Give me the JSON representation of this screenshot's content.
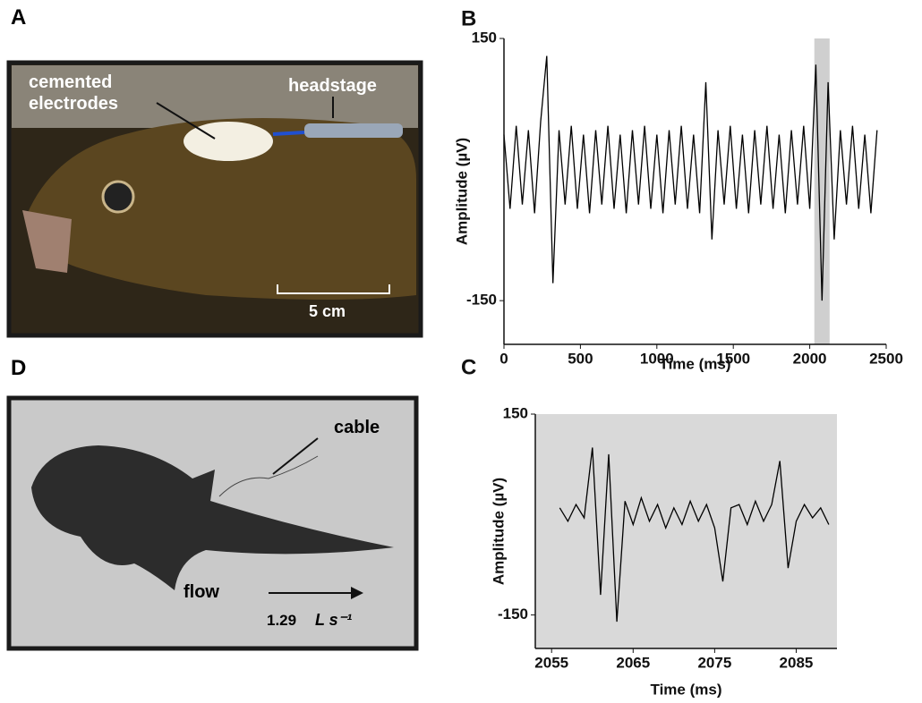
{
  "panels": {
    "A": {
      "label": "A",
      "electrodes": "cemented electrodes",
      "headstage": "headstage",
      "scale": "5 cm"
    },
    "D": {
      "label": "D",
      "cable": "cable",
      "flow": "flow",
      "speed": "1.29",
      "speed_unit": "L s⁻¹"
    }
  },
  "chart_data": [
    {
      "type": "line",
      "label": "B",
      "xlabel": "Time (ms)",
      "ylabel": "Amplitude (µV)",
      "xlim": [
        0,
        2500
      ],
      "xticks": [
        0,
        500,
        1000,
        1500,
        2000,
        2500
      ],
      "ylim": [
        -200,
        150
      ],
      "yticks": [
        -150,
        150
      ],
      "highlight": [
        2030,
        2130
      ],
      "color": "#000000",
      "x": [
        0,
        40,
        80,
        120,
        160,
        200,
        240,
        280,
        320,
        360,
        400,
        440,
        480,
        520,
        560,
        600,
        640,
        680,
        720,
        760,
        800,
        840,
        880,
        920,
        960,
        1000,
        1040,
        1080,
        1120,
        1160,
        1200,
        1240,
        1280,
        1320,
        1360,
        1400,
        1440,
        1480,
        1520,
        1560,
        1600,
        1640,
        1680,
        1720,
        1760,
        1800,
        1840,
        1880,
        1920,
        1960,
        2000,
        2040,
        2080,
        2120,
        2160,
        2200,
        2240,
        2280,
        2320,
        2360,
        2400,
        2440
      ],
      "values": [
        40,
        -45,
        50,
        -40,
        45,
        -50,
        55,
        130,
        -130,
        45,
        -40,
        50,
        -45,
        40,
        -50,
        45,
        -40,
        50,
        -45,
        40,
        -50,
        45,
        -40,
        50,
        -45,
        40,
        -50,
        45,
        -40,
        50,
        -45,
        40,
        -50,
        100,
        -80,
        45,
        -40,
        50,
        -45,
        40,
        -50,
        45,
        -40,
        50,
        -45,
        40,
        -50,
        45,
        -40,
        50,
        -45,
        120,
        -150,
        100,
        -80,
        45,
        -40,
        50,
        -45,
        40,
        -50,
        45
      ]
    },
    {
      "type": "line",
      "label": "C",
      "xlabel": "Time (ms)",
      "ylabel": "Amplitude (µV)",
      "xlim": [
        2053,
        2090
      ],
      "xticks": [
        2055,
        2065,
        2075,
        2085
      ],
      "ylim": [
        -200,
        150
      ],
      "yticks": [
        -150,
        150
      ],
      "background": "#d9d9d9",
      "color": "#000000",
      "x": [
        2056,
        2057,
        2058,
        2059,
        2060,
        2061,
        2062,
        2063,
        2064,
        2065,
        2066,
        2067,
        2068,
        2069,
        2070,
        2071,
        2072,
        2073,
        2074,
        2075,
        2076,
        2077,
        2078,
        2079,
        2080,
        2081,
        2082,
        2083,
        2084,
        2085,
        2086,
        2087,
        2088,
        2089
      ],
      "values": [
        10,
        -10,
        15,
        -5,
        100,
        -120,
        90,
        -160,
        20,
        -15,
        25,
        -10,
        15,
        -20,
        10,
        -15,
        20,
        -10,
        15,
        -20,
        -100,
        10,
        15,
        -15,
        20,
        -10,
        15,
        80,
        -80,
        -10,
        15,
        -5,
        10,
        -15
      ]
    }
  ]
}
